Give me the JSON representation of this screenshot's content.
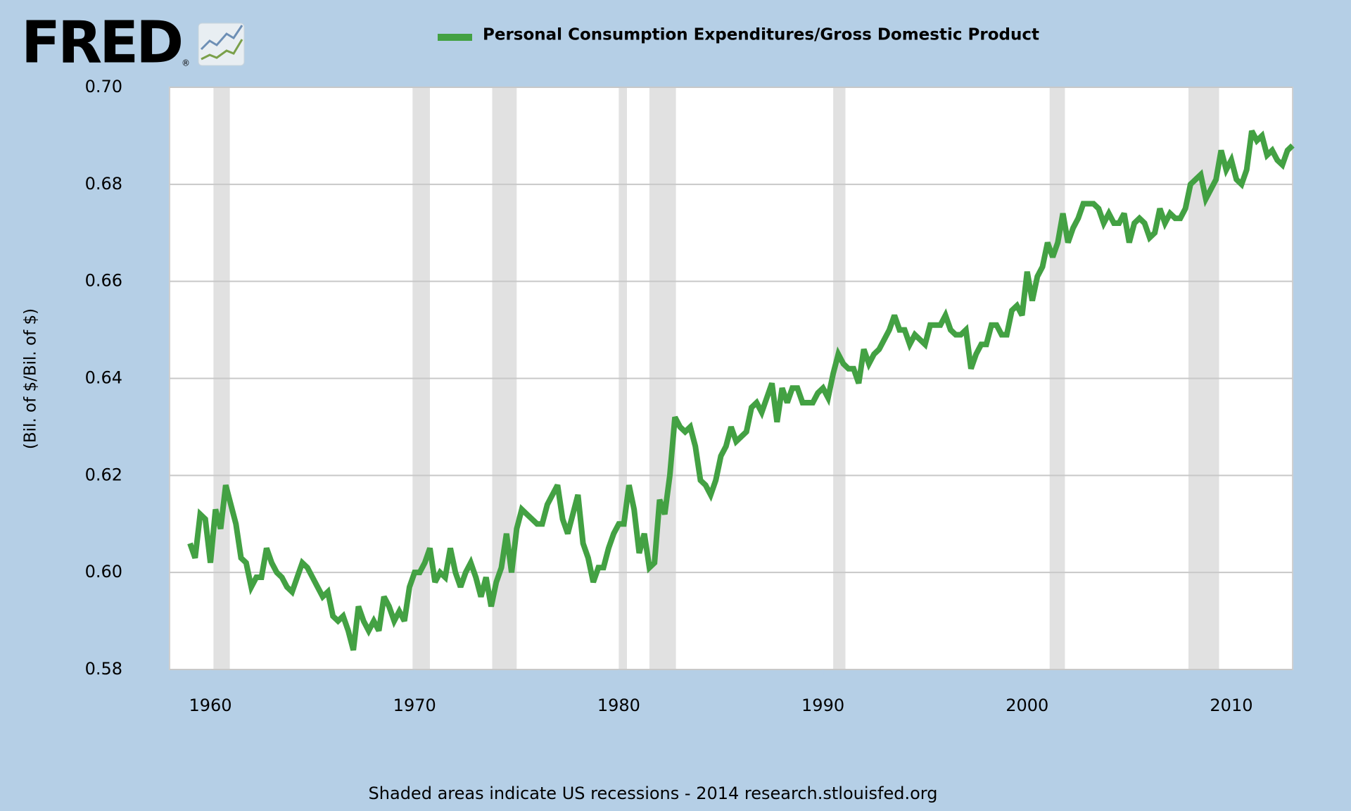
{
  "logo": "FRED",
  "logo_mark": "®",
  "footer": "Shaded areas indicate US recessions - 2014 research.stlouisfed.org",
  "chart_data": {
    "type": "line",
    "ylabel": "(Bil. of $/Bil. of $)",
    "xlim": [
      1958,
      2013
    ],
    "ylim": [
      0.58,
      0.7
    ],
    "xticks": [
      1960,
      1970,
      1980,
      1990,
      2000,
      2010
    ],
    "yticks": [
      0.58,
      {
        "value": 0.6,
        "label": "0.60"
      },
      0.62,
      0.64,
      0.66,
      0.68,
      {
        "value": 0.7,
        "label": "0.70"
      }
    ],
    "grid": true,
    "legend": "top",
    "recession_color": "#e1e1e1",
    "recessions": [
      [
        1960.15,
        1960.95
      ],
      [
        1969.9,
        1970.75
      ],
      [
        1973.8,
        1975.0
      ],
      [
        1980.0,
        1980.4
      ],
      [
        1981.5,
        1982.8
      ],
      [
        1990.5,
        1991.1
      ],
      [
        2001.1,
        2001.85
      ],
      [
        2007.9,
        2009.4
      ]
    ],
    "x": [
      1959,
      1959.25,
      1959.5,
      1959.75,
      1960,
      1960.25,
      1960.5,
      1960.75,
      1961,
      1961.25,
      1961.5,
      1961.75,
      1962,
      1962.25,
      1962.5,
      1962.75,
      1963,
      1963.25,
      1963.5,
      1963.75,
      1964,
      1964.25,
      1964.5,
      1964.75,
      1965,
      1965.25,
      1965.5,
      1965.75,
      1966,
      1966.25,
      1966.5,
      1966.75,
      1967,
      1967.25,
      1967.5,
      1967.75,
      1968,
      1968.25,
      1968.5,
      1968.75,
      1969,
      1969.25,
      1969.5,
      1969.75,
      1970,
      1970.25,
      1970.5,
      1970.75,
      1971,
      1971.25,
      1971.5,
      1971.75,
      1972,
      1972.25,
      1972.5,
      1972.75,
      1973,
      1973.25,
      1973.5,
      1973.75,
      1974,
      1974.25,
      1974.5,
      1974.75,
      1975,
      1975.25,
      1975.5,
      1975.75,
      1976,
      1976.25,
      1976.5,
      1976.75,
      1977,
      1977.25,
      1977.5,
      1977.75,
      1978,
      1978.25,
      1978.5,
      1978.75,
      1979,
      1979.25,
      1979.5,
      1979.75,
      1980,
      1980.25,
      1980.5,
      1980.75,
      1981,
      1981.25,
      1981.5,
      1981.75,
      1982,
      1982.25,
      1982.5,
      1982.75,
      1983,
      1983.25,
      1983.5,
      1983.75,
      1984,
      1984.25,
      1984.5,
      1984.75,
      1985,
      1985.25,
      1985.5,
      1985.75,
      1986,
      1986.25,
      1986.5,
      1986.75,
      1987,
      1987.25,
      1987.5,
      1987.75,
      1988,
      1988.25,
      1988.5,
      1988.75,
      1989,
      1989.25,
      1989.5,
      1989.75,
      1990,
      1990.25,
      1990.5,
      1990.75,
      1991,
      1991.25,
      1991.5,
      1991.75,
      1992,
      1992.25,
      1992.5,
      1992.75,
      1993,
      1993.25,
      1993.5,
      1993.75,
      1994,
      1994.25,
      1994.5,
      1994.75,
      1995,
      1995.25,
      1995.5,
      1995.75,
      1996,
      1996.25,
      1996.5,
      1996.75,
      1997,
      1997.25,
      1997.5,
      1997.75,
      1998,
      1998.25,
      1998.5,
      1998.75,
      1999,
      1999.25,
      1999.5,
      1999.75,
      2000,
      2000.25,
      2000.5,
      2000.75,
      2001,
      2001.25,
      2001.5,
      2001.75,
      2002,
      2002.25,
      2002.5,
      2002.75,
      2003,
      2003.25,
      2003.5,
      2003.75,
      2004,
      2004.25,
      2004.5,
      2004.75,
      2005,
      2005.25,
      2005.5,
      2005.75,
      2006,
      2006.25,
      2006.5,
      2006.75,
      2007,
      2007.25,
      2007.5,
      2007.75,
      2008,
      2008.25,
      2008.5,
      2008.75,
      2009,
      2009.25,
      2009.5,
      2009.75,
      2010,
      2010.25,
      2010.5,
      2010.75,
      2011,
      2011.25,
      2011.5,
      2011.75,
      2012,
      2012.25,
      2012.5,
      2012.75,
      2013
    ],
    "series": [
      {
        "name": "Personal Consumption Expenditures/Gross Domestic Product",
        "color": "#43a143",
        "values": [
          0.606,
          0.603,
          0.612,
          0.611,
          0.602,
          0.613,
          0.609,
          0.618,
          0.614,
          0.61,
          0.603,
          0.602,
          0.597,
          0.599,
          0.599,
          0.605,
          0.602,
          0.6,
          0.599,
          0.597,
          0.596,
          0.599,
          0.602,
          0.601,
          0.599,
          0.597,
          0.595,
          0.596,
          0.591,
          0.59,
          0.591,
          0.588,
          0.584,
          0.593,
          0.59,
          0.588,
          0.59,
          0.588,
          0.595,
          0.593,
          0.59,
          0.592,
          0.59,
          0.597,
          0.6,
          0.6,
          0.602,
          0.605,
          0.598,
          0.6,
          0.599,
          0.605,
          0.6,
          0.597,
          0.6,
          0.602,
          0.599,
          0.595,
          0.599,
          0.593,
          0.598,
          0.601,
          0.608,
          0.6,
          0.609,
          0.613,
          0.612,
          0.611,
          0.61,
          0.61,
          0.614,
          0.616,
          0.618,
          0.611,
          0.608,
          0.612,
          0.616,
          0.606,
          0.603,
          0.598,
          0.601,
          0.601,
          0.605,
          0.608,
          0.61,
          0.61,
          0.618,
          0.613,
          0.604,
          0.608,
          0.601,
          0.602,
          0.615,
          0.612,
          0.62,
          0.632,
          0.63,
          0.629,
          0.63,
          0.626,
          0.619,
          0.618,
          0.616,
          0.619,
          0.624,
          0.626,
          0.63,
          0.627,
          0.628,
          0.629,
          0.634,
          0.635,
          0.633,
          0.636,
          0.639,
          0.631,
          0.638,
          0.635,
          0.638,
          0.638,
          0.635,
          0.635,
          0.635,
          0.637,
          0.638,
          0.636,
          0.641,
          0.645,
          0.643,
          0.642,
          0.642,
          0.639,
          0.646,
          0.643,
          0.645,
          0.646,
          0.648,
          0.65,
          0.653,
          0.65,
          0.65,
          0.647,
          0.649,
          0.648,
          0.647,
          0.651,
          0.651,
          0.651,
          0.653,
          0.65,
          0.649,
          0.649,
          0.65,
          0.642,
          0.645,
          0.647,
          0.647,
          0.651,
          0.651,
          0.649,
          0.649,
          0.654,
          0.655,
          0.653,
          0.662,
          0.656,
          0.661,
          0.663,
          0.668,
          0.665,
          0.668,
          0.674,
          0.668,
          0.671,
          0.673,
          0.676,
          0.676,
          0.676,
          0.675,
          0.672,
          0.674,
          0.672,
          0.672,
          0.674,
          0.668,
          0.672,
          0.673,
          0.672,
          0.669,
          0.67,
          0.675,
          0.672,
          0.674,
          0.673,
          0.673,
          0.675,
          0.68,
          0.681,
          0.682,
          0.677,
          0.679,
          0.681,
          0.687,
          0.683,
          0.685,
          0.681,
          0.68,
          0.683,
          0.691,
          0.689,
          0.69,
          0.686,
          0.687,
          0.685,
          0.684,
          0.687,
          0.688
        ]
      }
    ]
  }
}
